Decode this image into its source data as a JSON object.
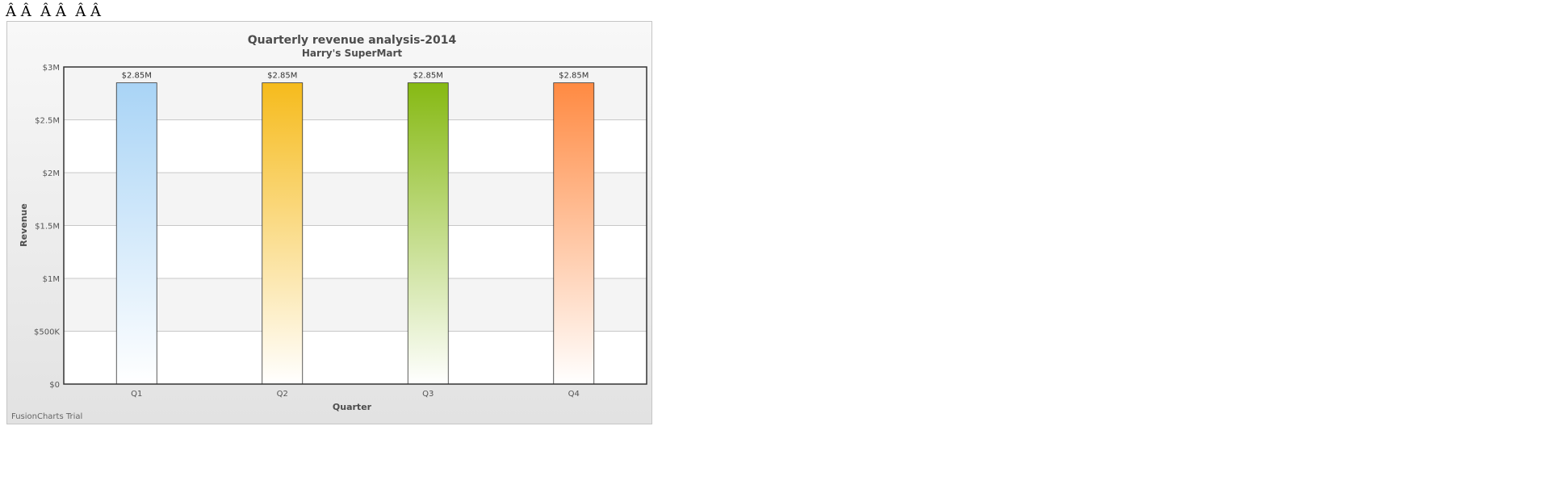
{
  "page": {
    "garbage_text": "Â Â  Â Â  Â Â"
  },
  "chart_data": {
    "type": "bar",
    "title": "Quarterly revenue analysis-2014",
    "subtitle": "Harry's SuperMart",
    "xlabel": "Quarter",
    "ylabel": "Revenue",
    "categories": [
      "Q1",
      "Q2",
      "Q3",
      "Q4"
    ],
    "values": [
      2850000,
      2850000,
      2850000,
      2850000
    ],
    "value_labels": [
      "$2.85M",
      "$2.85M",
      "$2.85M",
      "$2.85M"
    ],
    "ylim": [
      0,
      3000000
    ],
    "yticks": [
      0,
      500000,
      1000000,
      1500000,
      2000000,
      2500000,
      3000000
    ],
    "ytick_labels": [
      "$0",
      "$500K",
      "$1M",
      "$1.5M",
      "$2M",
      "$2.5M",
      "$3M"
    ],
    "colors": [
      "#a9d4f6",
      "#f6bb1c",
      "#86b913",
      "#ff8a42"
    ],
    "grid": true,
    "legend": "none"
  },
  "watermark": "FusionCharts Trial"
}
